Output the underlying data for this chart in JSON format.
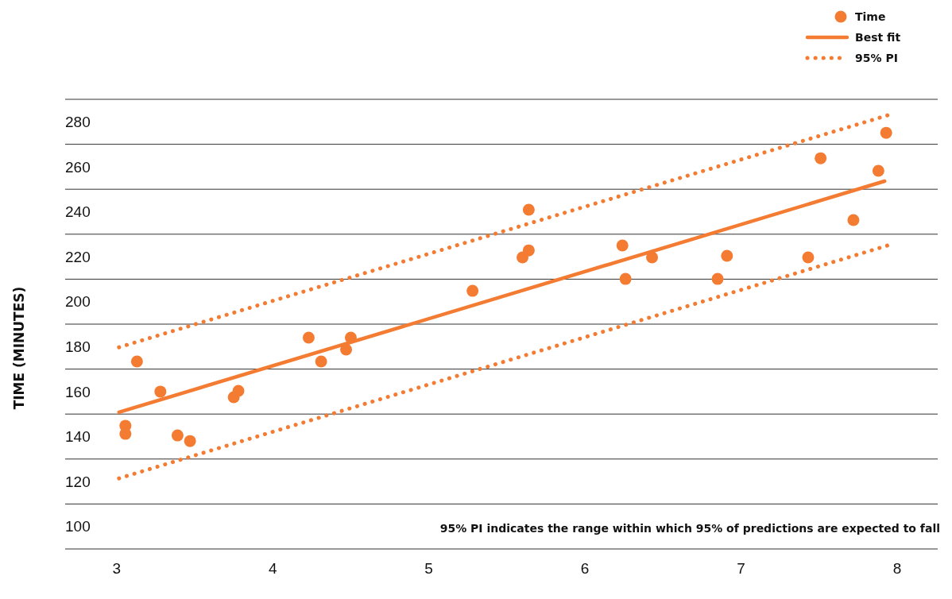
{
  "chart_data": {
    "type": "scatter",
    "ylabel": "TIME (MINUTES)",
    "xlim": [
      2.67,
      8.26
    ],
    "xticks": [
      3,
      4,
      5,
      6,
      7,
      8
    ],
    "ylim": [
      90,
      290
    ],
    "yticks": [
      {
        "value": 90,
        "label": null
      },
      100,
      {
        "value": 110,
        "label": null
      },
      120,
      {
        "value": 130,
        "label": null
      },
      140,
      {
        "value": 150,
        "label": null
      },
      160,
      {
        "value": 170,
        "label": null
      },
      180,
      {
        "value": 190,
        "label": null
      },
      200,
      {
        "value": 210,
        "label": null
      },
      220,
      {
        "value": 230,
        "label": null
      },
      240,
      {
        "value": 250,
        "label": null
      },
      260,
      {
        "value": 270,
        "label": null
      },
      280,
      {
        "value": 290,
        "label": null
      }
    ],
    "grid": "y",
    "legend": "top right",
    "annotations": [
      "95% PI indicates the range within which 95% of predictions are expected to fall"
    ],
    "series": [
      {
        "name": "Time",
        "marker": "circle",
        "color": "#f47b32",
        "x": [
          3.056,
          3.056,
          3.13,
          3.28,
          3.39,
          3.47,
          3.75,
          3.78,
          4.23,
          4.31,
          4.47,
          4.5,
          5.28,
          5.6,
          5.64,
          5.64,
          6.24,
          6.26,
          6.43,
          6.85,
          6.91,
          7.43,
          7.51,
          7.72,
          7.88,
          7.93
        ],
        "values": [
          144.8,
          141.2,
          173.4,
          160,
          140.5,
          138,
          157.5,
          160.3,
          184,
          173.4,
          178.7,
          184,
          204.8,
          219.7,
          222.8,
          240.9,
          225,
          210.1,
          219.7,
          210.1,
          220.4,
          219.7,
          263.8,
          236.3,
          258.2,
          275.1
        ]
      },
      {
        "name": "Best fit",
        "type": "line",
        "line_style": "solid",
        "color": "#f47b32",
        "x": [
          3.015,
          7.92
        ],
        "values": [
          150.8,
          253.6
        ]
      },
      {
        "name": "95% PI",
        "type": "line",
        "line_style": "dotted",
        "color": "#f47b32",
        "x": [
          3.015,
          7.94
        ],
        "values": [
          179.7,
          282.9
        ]
      },
      {
        "type": "line",
        "line_style": "dotted",
        "color": "#f47b32",
        "x": [
          3.015,
          7.94
        ],
        "values": [
          121.4,
          225
        ]
      }
    ]
  }
}
